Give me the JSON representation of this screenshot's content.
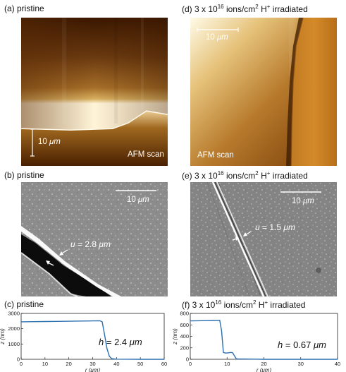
{
  "panels": {
    "a": {
      "label": "(a) pristine",
      "scale": "10",
      "scale_unit": "μm",
      "scan_label": "AFM scan"
    },
    "b": {
      "label": "(b) pristine",
      "scale": "10",
      "scale_unit": "μm",
      "annotation_var": "u",
      "annotation_value": "= 2.8",
      "annotation_unit": "μm"
    },
    "c": {
      "label": "(c) pristine",
      "height_var": "h",
      "height_value": "= 2.4",
      "height_unit": "μm"
    },
    "d": {
      "label_prefix": "(d) 3 x 10",
      "label_exp": "16",
      "label_mid": " ions/cm",
      "label_sq": "2",
      "label_end": " H",
      "label_plus": "+",
      "label_tail": " irradiated",
      "scale": "10",
      "scale_unit": "μm",
      "scan_label": "AFM scan"
    },
    "e": {
      "label_prefix": "(e) 3 x 10",
      "label_exp": "16",
      "label_mid": " ions/cm",
      "label_sq": "2",
      "label_end": " H",
      "label_plus": "+",
      "label_tail": " irradiated",
      "scale": "10",
      "scale_unit": "μm",
      "annotation_var": "u",
      "annotation_value": "= 1.5",
      "annotation_unit": "μm"
    },
    "f": {
      "label_prefix": "(f) 3 x 10",
      "label_exp": "16",
      "label_mid": " ions/cm",
      "label_sq": "2",
      "label_end": " H",
      "label_plus": "+",
      "label_tail": " irradiated",
      "height_var": "h",
      "height_value": "= 0.67",
      "height_unit": "μm"
    }
  },
  "chart_data": [
    {
      "type": "line",
      "xlabel": "r (μm)",
      "ylabel": "z (nm)",
      "xlim": [
        0,
        60
      ],
      "ylim": [
        0,
        3000
      ],
      "xticks": [
        0,
        10,
        20,
        30,
        40,
        50,
        60
      ],
      "yticks": [
        0,
        1000,
        2000,
        3000
      ],
      "color": "#2a6fb0",
      "x": [
        0,
        5,
        10,
        15,
        20,
        25,
        30,
        33,
        34,
        35,
        36,
        37,
        38,
        40,
        45,
        50,
        55,
        60
      ],
      "y": [
        2450,
        2460,
        2470,
        2480,
        2490,
        2500,
        2510,
        2520,
        2450,
        1600,
        700,
        200,
        40,
        10,
        5,
        0,
        0,
        0
      ]
    },
    {
      "type": "line",
      "xlabel": "r (μm)",
      "ylabel": "z (nm)",
      "xlim": [
        0,
        40
      ],
      "ylim": [
        0,
        800
      ],
      "xticks": [
        0,
        10,
        20,
        30,
        40
      ],
      "yticks": [
        0,
        200,
        400,
        600,
        800
      ],
      "color": "#2a6fb0",
      "x": [
        0,
        2,
        4,
        6,
        8,
        8.5,
        9,
        9.5,
        10,
        11,
        11.5,
        12,
        12.5,
        13,
        15,
        20,
        25,
        30,
        35,
        40
      ],
      "y": [
        670,
        672,
        675,
        677,
        680,
        500,
        120,
        110,
        110,
        120,
        115,
        60,
        10,
        5,
        5,
        0,
        0,
        0,
        0,
        0
      ]
    }
  ]
}
